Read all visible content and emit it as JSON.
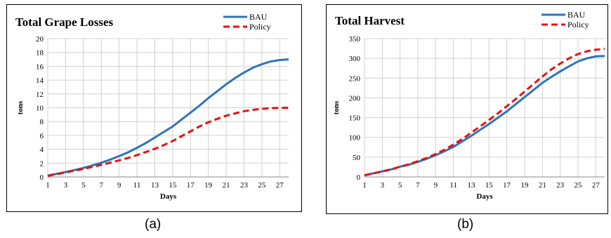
{
  "chart_data": [
    {
      "type": "line",
      "title": "Total Grape Losses",
      "xlabel": "Days",
      "ylabel": "tons",
      "xlim": [
        1,
        28
      ],
      "ylim": [
        0,
        20
      ],
      "y_step": 2,
      "x_ticks": [
        1,
        3,
        5,
        7,
        9,
        11,
        13,
        15,
        17,
        19,
        21,
        23,
        25,
        27
      ],
      "grid": true,
      "legend_position": "top-right",
      "x": [
        1,
        2,
        3,
        4,
        5,
        6,
        7,
        8,
        9,
        10,
        11,
        12,
        13,
        14,
        15,
        16,
        17,
        18,
        19,
        20,
        21,
        22,
        23,
        24,
        25,
        26,
        27,
        28
      ],
      "series": [
        {
          "name": "BAU",
          "color": "#2e75b6",
          "dash": "solid",
          "values": [
            0.2,
            0.45,
            0.7,
            1.0,
            1.3,
            1.65,
            2.05,
            2.5,
            3.0,
            3.55,
            4.2,
            4.9,
            5.7,
            6.5,
            7.3,
            8.3,
            9.3,
            10.3,
            11.4,
            12.4,
            13.4,
            14.3,
            15.1,
            15.8,
            16.3,
            16.7,
            16.9,
            17.0
          ]
        },
        {
          "name": "Policy",
          "color": "#e8110e",
          "dash": "dashed",
          "values": [
            0.15,
            0.4,
            0.65,
            0.9,
            1.15,
            1.45,
            1.75,
            2.05,
            2.4,
            2.75,
            3.15,
            3.6,
            4.05,
            4.6,
            5.2,
            5.9,
            6.6,
            7.3,
            7.9,
            8.4,
            8.85,
            9.2,
            9.5,
            9.7,
            9.85,
            9.95,
            9.98,
            10.0
          ]
        }
      ]
    },
    {
      "type": "line",
      "title": "Total Harvest",
      "xlabel": "Days",
      "ylabel": "tons",
      "xlim": [
        1,
        28
      ],
      "ylim": [
        0,
        350
      ],
      "y_step": 50,
      "x_ticks": [
        1,
        3,
        5,
        7,
        9,
        11,
        13,
        15,
        17,
        19,
        21,
        23,
        25,
        27
      ],
      "grid": true,
      "legend_position": "top-right",
      "x": [
        1,
        2,
        3,
        4,
        5,
        6,
        7,
        8,
        9,
        10,
        11,
        12,
        13,
        14,
        15,
        16,
        17,
        18,
        19,
        20,
        21,
        22,
        23,
        24,
        25,
        26,
        27,
        28
      ],
      "series": [
        {
          "name": "BAU",
          "color": "#2e75b6",
          "dash": "solid",
          "values": [
            4,
            9,
            14,
            19,
            26,
            31,
            38,
            46,
            55,
            65,
            76,
            90,
            104,
            119,
            134,
            150,
            166,
            184,
            202,
            220,
            238,
            253,
            267,
            280,
            292,
            300,
            305,
            306
          ]
        },
        {
          "name": "Policy",
          "color": "#e8110e",
          "dash": "dashed",
          "values": [
            4,
            9,
            14,
            19,
            26,
            32,
            40,
            48,
            58,
            69,
            82,
            96,
            112,
            128,
            144,
            161,
            179,
            197,
            216,
            235,
            254,
            272,
            287,
            300,
            311,
            318,
            322,
            324
          ]
        }
      ]
    }
  ],
  "captions": [
    "(a)",
    "(b)"
  ]
}
